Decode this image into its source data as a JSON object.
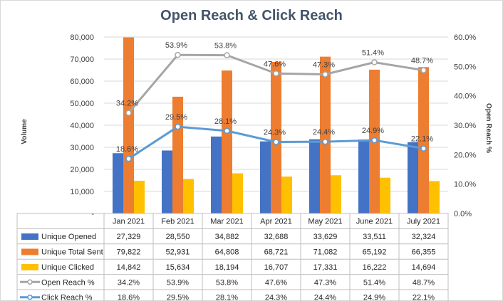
{
  "chart_data": {
    "type": "bar",
    "title": "Open Reach & Click Reach",
    "categories": [
      "Jan 2021",
      "Feb 2021",
      "Mar 2021",
      "Apr 2021",
      "May 2021",
      "June 2021",
      "July 2021"
    ],
    "series": [
      {
        "name": "Unique Opened",
        "type": "bar",
        "axis": "left",
        "color": "#4472c4",
        "values": [
          27329,
          28550,
          34882,
          32688,
          33629,
          33511,
          32324
        ],
        "labels": [
          "27,329",
          "28,550",
          "34,882",
          "32,688",
          "33,629",
          "33,511",
          "32,324"
        ]
      },
      {
        "name": "Unique Total Sent",
        "type": "bar",
        "axis": "left",
        "color": "#ed7d31",
        "values": [
          79822,
          52931,
          64808,
          68721,
          71082,
          65192,
          66355
        ],
        "labels": [
          "79,822",
          "52,931",
          "64,808",
          "68,721",
          "71,082",
          "65,192",
          "66,355"
        ]
      },
      {
        "name": "Unique Clicked",
        "type": "bar",
        "axis": "left",
        "color": "#ffc000",
        "values": [
          14842,
          15634,
          18194,
          16707,
          17331,
          16222,
          14694
        ],
        "labels": [
          "14,842",
          "15,634",
          "18,194",
          "16,707",
          "17,331",
          "16,222",
          "14,694"
        ]
      },
      {
        "name": "Open Reach %",
        "type": "line",
        "axis": "right",
        "color": "#a5a5a5",
        "values": [
          34.2,
          53.9,
          53.8,
          47.6,
          47.3,
          51.4,
          48.7
        ],
        "labels": [
          "34.2%",
          "53.9%",
          "53.8%",
          "47.6%",
          "47.3%",
          "51.4%",
          "48.7%"
        ]
      },
      {
        "name": "Click Reach %",
        "type": "line",
        "axis": "right",
        "color": "#5b9bd5",
        "values": [
          18.6,
          29.5,
          28.1,
          24.3,
          24.4,
          24.9,
          22.1
        ],
        "labels": [
          "18.6%",
          "29.5%",
          "28.1%",
          "24.3%",
          "24.4%",
          "24.9%",
          "22.1%"
        ]
      }
    ],
    "ylabel": "Volume",
    "y2label": "Open Reach %",
    "ylim": [
      0,
      80000
    ],
    "y2lim": [
      0,
      60
    ],
    "yticks": [
      "-",
      "10,000",
      "20,000",
      "30,000",
      "40,000",
      "50,000",
      "60,000",
      "70,000",
      "80,000"
    ],
    "y2ticks": [
      "0.0%",
      "10.0%",
      "20.0%",
      "30.0%",
      "40.0%",
      "50.0%",
      "60.0%"
    ],
    "grid": true,
    "legend": "data-table",
    "data_table": true
  }
}
